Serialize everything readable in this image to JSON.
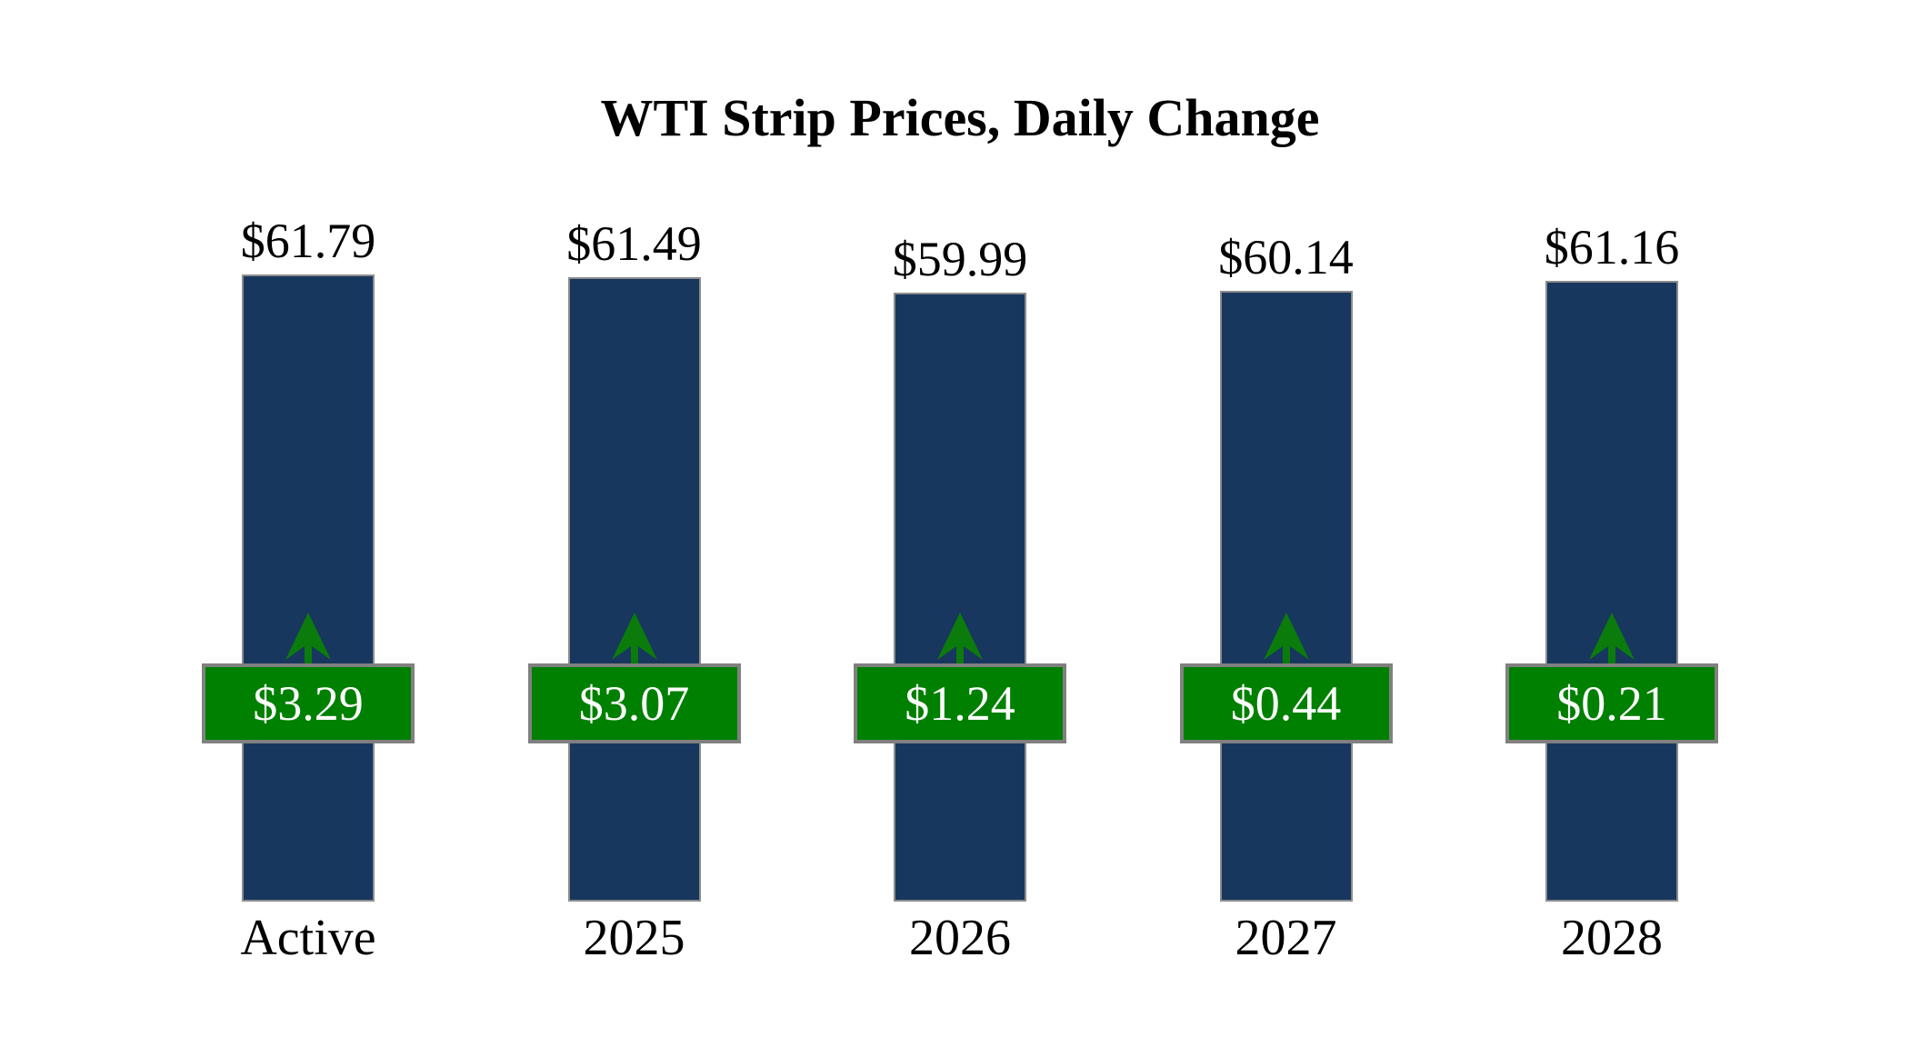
{
  "chart_data": {
    "type": "bar",
    "title": "WTI Strip Prices, Daily Change",
    "categories": [
      "Active",
      "2025",
      "2026",
      "2027",
      "2028"
    ],
    "series": [
      {
        "name": "Strip Price",
        "values": [
          61.79,
          61.49,
          59.99,
          60.14,
          61.16
        ],
        "labels": [
          "$61.79",
          "$61.49",
          "$59.99",
          "$60.14",
          "$61.16"
        ],
        "label_position": "above-bar"
      },
      {
        "name": "Daily Change",
        "values": [
          3.29,
          3.07,
          1.24,
          0.44,
          0.21
        ],
        "labels": [
          "$3.29",
          "$3.07",
          "$1.24",
          "$0.44",
          "$0.21"
        ],
        "direction": "up",
        "marker": "green-badge-with-up-arrow"
      }
    ],
    "ylim": [
      0,
      62
    ],
    "grid": false,
    "legend": false,
    "axes_visible": false
  },
  "colors": {
    "bar_fill": "#17375E",
    "bar_border": "#8C8C8C",
    "badge_fill": "#008000",
    "badge_border": "#808080",
    "arrow_fill": "#0B7C0B",
    "title_text": "#000000",
    "label_text": "#000000",
    "badge_text": "#FFFFFF",
    "background": "#FFFFFF"
  }
}
